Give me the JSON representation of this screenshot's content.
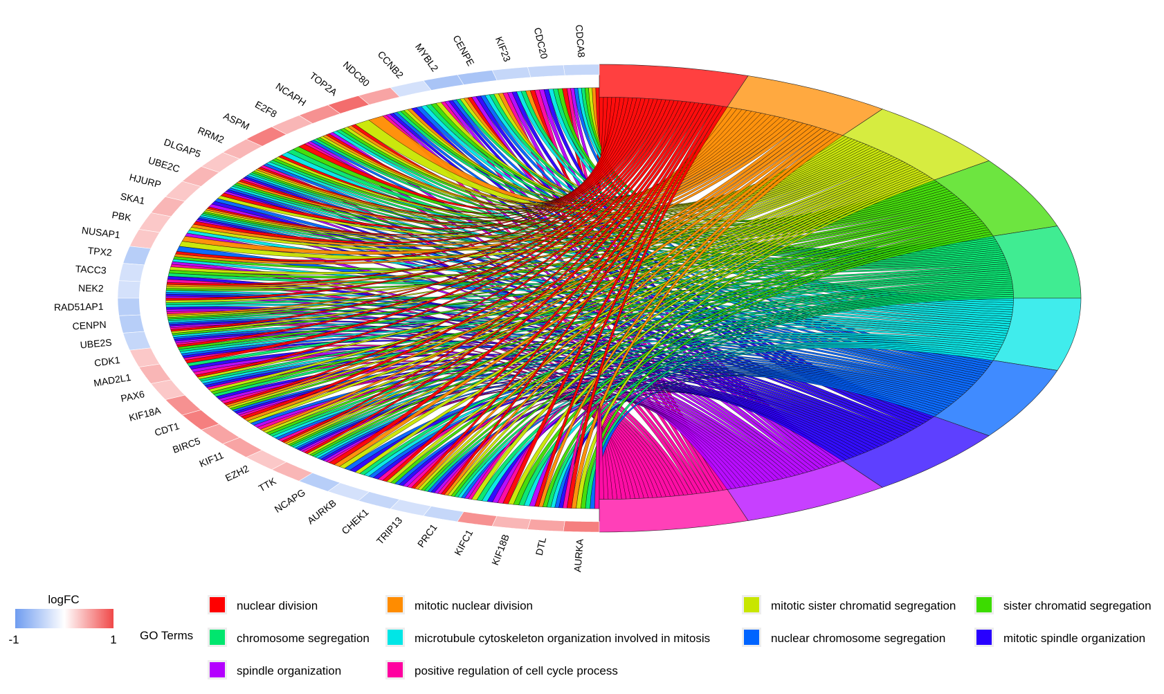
{
  "chart_data": {
    "type": "chord",
    "genes": [
      "CDCA8",
      "CDC20",
      "KIF23",
      "CENPE",
      "MYBL2",
      "CCNB2",
      "NDC80",
      "TOP2A",
      "NCAPH",
      "E2F8",
      "ASPM",
      "RRM2",
      "DLGAP5",
      "UBE2C",
      "HJURP",
      "SKA1",
      "PBK",
      "NUSAP1",
      "TPX2",
      "TACC3",
      "NEK2",
      "RAD51AP1",
      "CENPN",
      "UBE2S",
      "CDK1",
      "MAD2L1",
      "PAX6",
      "KIF18A",
      "CDT1",
      "BIRC5",
      "KIF11",
      "EZH2",
      "TTK",
      "NCAPG",
      "AURKB",
      "CHEK1",
      "TRIP13",
      "PRC1",
      "KIFC1",
      "KIF18B",
      "DTL",
      "AURKA"
    ],
    "logFC": [
      -0.4,
      -0.4,
      -0.4,
      -0.6,
      -0.6,
      -0.3,
      0.5,
      0.8,
      0.6,
      0.4,
      0.7,
      0.4,
      0.3,
      0.4,
      0.3,
      0.4,
      0.3,
      0.3,
      -0.5,
      -0.3,
      -0.3,
      -0.5,
      -0.5,
      -0.4,
      0.3,
      0.4,
      0.3,
      0.6,
      0.7,
      0.5,
      0.5,
      0.3,
      0.4,
      -0.5,
      -0.3,
      -0.4,
      -0.3,
      -0.4,
      0.6,
      0.4,
      0.5,
      0.7
    ],
    "go_terms": [
      {
        "name": "nuclear division",
        "color": "#ff0000"
      },
      {
        "name": "mitotic nuclear division",
        "color": "#ff8c00"
      },
      {
        "name": "mitotic sister chromatid segregation",
        "color": "#c8e600"
      },
      {
        "name": "sister chromatid segregation",
        "color": "#3cdc00"
      },
      {
        "name": "chromosome segregation",
        "color": "#00e66e"
      },
      {
        "name": "microtubule cytoskeleton organization involved in mitosis",
        "color": "#00e6e6"
      },
      {
        "name": "nuclear chromosome segregation",
        "color": "#0064ff"
      },
      {
        "name": "mitotic spindle organization",
        "color": "#2800ff"
      },
      {
        "name": "spindle organization",
        "color": "#b400ff"
      },
      {
        "name": "positive regulation of cell cycle process",
        "color": "#ff00a0"
      }
    ],
    "legend": {
      "logfc_title": "logFC",
      "logfc_min_label": "-1",
      "logfc_max_label": "1",
      "go_title": "GO Terms",
      "color_low": "#6f9cf0",
      "color_mid": "#ffffff",
      "color_high": "#f04848"
    }
  }
}
